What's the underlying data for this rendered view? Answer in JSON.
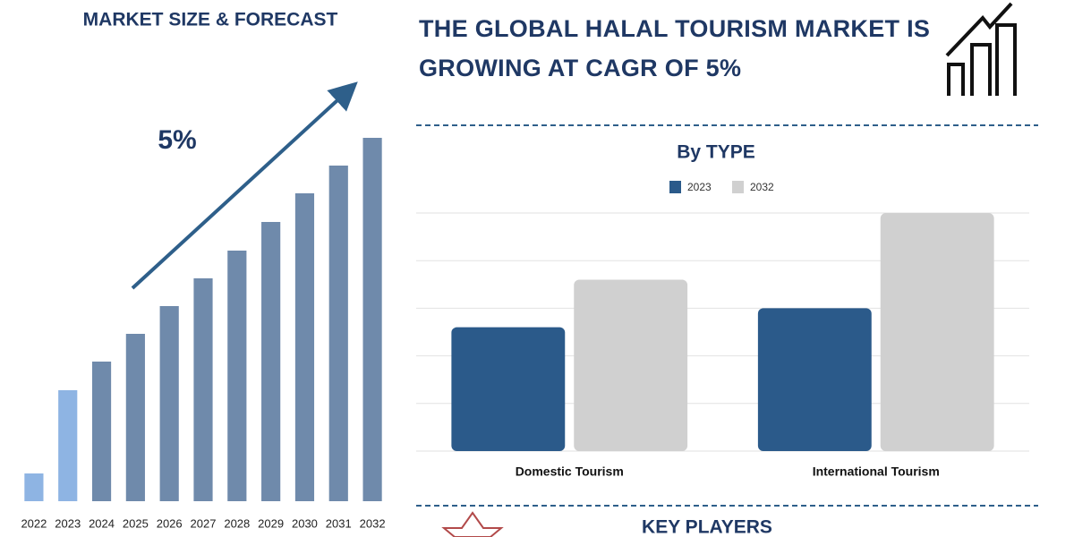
{
  "headline": "THE GLOBAL HALAL TOURISM MARKET IS GROWING AT CAGR OF 5%",
  "footer_heading": "KEY PLAYERS",
  "chart_data": [
    {
      "type": "bar",
      "title": "MARKET SIZE & FORECAST",
      "annotation": "5%",
      "categories": [
        "2022",
        "2023",
        "2024",
        "2025",
        "2026",
        "2027",
        "2028",
        "2029",
        "2030",
        "2031",
        "2032"
      ],
      "values": [
        31,
        124,
        156,
        187,
        218,
        249,
        280,
        312,
        344,
        375,
        406
      ],
      "colors": [
        "#8eb4e3",
        "#8eb4e3",
        "#6f8aab",
        "#6f8aab",
        "#6f8aab",
        "#6f8aab",
        "#6f8aab",
        "#6f8aab",
        "#6f8aab",
        "#6f8aab",
        "#6f8aab"
      ],
      "ylim": [
        0,
        420
      ]
    },
    {
      "type": "bar",
      "title": "By TYPE",
      "categories": [
        "Domestic Tourism",
        "International Tourism"
      ],
      "series": [
        {
          "name": "2023",
          "color": "#2b5a8a",
          "values": [
            2.6,
            3.0
          ]
        },
        {
          "name": "2032",
          "color": "#d0d0d0",
          "values": [
            3.6,
            5.0
          ]
        }
      ],
      "ylim": [
        0,
        5
      ],
      "yticks": [
        0,
        1,
        2,
        3,
        4,
        5
      ],
      "grid": true
    }
  ]
}
